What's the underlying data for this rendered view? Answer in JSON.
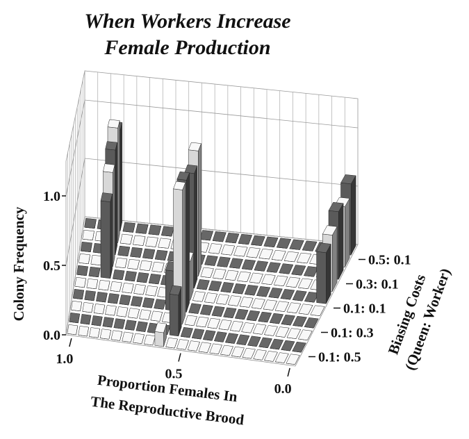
{
  "chart_data": {
    "type": "bar3d",
    "title": [
      "When Workers Increase",
      "Female Production"
    ],
    "zlabel": "Colony Frequency",
    "xlabel": [
      "Proportion Females In",
      "The Reproductive Brood"
    ],
    "depth_label": [
      "Biasing Costs",
      "(Queen: Worker)"
    ],
    "depth_categories": [
      "0.5: 0.1",
      "0.3: 0.1",
      "0.1: 0.1",
      "0.1: 0.3",
      "0.1: 0.5"
    ],
    "x": [
      1,
      0.95,
      0.9,
      0.85,
      0.8,
      0.75,
      0.7,
      0.65,
      0.6,
      0.55,
      0.5,
      0.45,
      0.4,
      0.35,
      0.3,
      0.25,
      0.2,
      0.15,
      0.1,
      0.05,
      0
    ],
    "xlim": [
      1,
      0
    ],
    "xticks": [
      {
        "value": 1,
        "label": "1.0"
      },
      {
        "value": 0.5,
        "label": "0.5"
      },
      {
        "value": 0,
        "label": "0.0"
      }
    ],
    "zlim": [
      0,
      1.25
    ],
    "zticks": [
      {
        "value": 0,
        "label": "0.0"
      },
      {
        "value": 0.5,
        "label": "0.5"
      },
      {
        "value": 1,
        "label": "1.0"
      }
    ],
    "grid": true,
    "series": [
      {
        "color": "#5a5a5a",
        "values": [
          0,
          0,
          0.85,
          0,
          0,
          0,
          0,
          0,
          0,
          0,
          0,
          0,
          0,
          0,
          0,
          0,
          0,
          0,
          0,
          0,
          0.6
        ]
      },
      {
        "color": "#d8d8d8",
        "values": [
          0,
          0,
          0.95,
          0,
          0,
          0,
          0,
          0,
          0,
          0,
          0,
          0,
          0,
          0,
          0,
          0,
          0,
          0,
          0,
          0,
          0.5
        ]
      },
      {
        "color": "#5a5a5a",
        "values": [
          0,
          0,
          0.85,
          0,
          0,
          0,
          0,
          0,
          0,
          0,
          0,
          0,
          0,
          0,
          0,
          0,
          0,
          0,
          0,
          0,
          0.55
        ]
      },
      {
        "color": "#d8d8d8",
        "values": [
          0,
          0,
          0.75,
          0,
          0,
          0,
          0,
          0,
          0,
          1,
          0,
          0,
          0,
          0,
          0,
          0,
          0,
          0,
          0,
          0,
          0.45
        ]
      },
      {
        "color": "#5a5a5a",
        "values": [
          0,
          0,
          0.6,
          0,
          0,
          0,
          0,
          0,
          0,
          0.9,
          0,
          0,
          0,
          0,
          0,
          0,
          0,
          0,
          0,
          0,
          0.4
        ]
      },
      {
        "color": "#d8d8d8",
        "values": [
          0,
          0,
          0,
          0,
          0,
          0,
          0,
          0,
          0,
          0.3,
          0,
          0,
          0,
          0,
          0,
          0,
          0,
          0,
          0,
          0,
          0
        ]
      },
      {
        "color": "#5a5a5a",
        "values": [
          0,
          0,
          0,
          0,
          0,
          0,
          0,
          0,
          0.3,
          1,
          0,
          0,
          0,
          0,
          0,
          0,
          0,
          0,
          0,
          0,
          0
        ]
      },
      {
        "color": "#d8d8d8",
        "values": [
          0,
          0,
          0,
          0,
          0,
          0,
          0,
          0,
          0,
          1,
          0,
          0,
          0,
          0,
          0,
          0,
          0,
          0,
          0,
          0,
          0
        ]
      },
      {
        "color": "#5a5a5a",
        "values": [
          0,
          0,
          0,
          0,
          0,
          0,
          0,
          0,
          0,
          0.3,
          0,
          0,
          0,
          0,
          0,
          0,
          0,
          0,
          0,
          0,
          0
        ]
      },
      {
        "color": "#d8d8d8",
        "values": [
          0,
          0,
          0,
          0,
          0,
          0,
          0,
          0,
          0.1,
          0,
          0,
          0,
          0,
          0,
          0,
          0,
          0,
          0,
          0,
          0,
          0
        ]
      }
    ]
  }
}
